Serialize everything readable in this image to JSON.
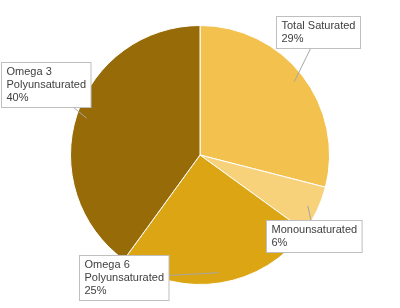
{
  "chart_data": {
    "type": "pie",
    "categories": [
      "Total Saturated",
      "Monounsaturated",
      "Omega 6 Polyunsaturated",
      "Omega 3 Polyunsaturated"
    ],
    "values": [
      29,
      6,
      25,
      40
    ],
    "value_labels": [
      "29%",
      "6%",
      "25%",
      "40%"
    ],
    "colors": [
      "#f2c14e",
      "#f7d27a",
      "#dba514",
      "#976c08"
    ],
    "data_labels": true
  }
}
